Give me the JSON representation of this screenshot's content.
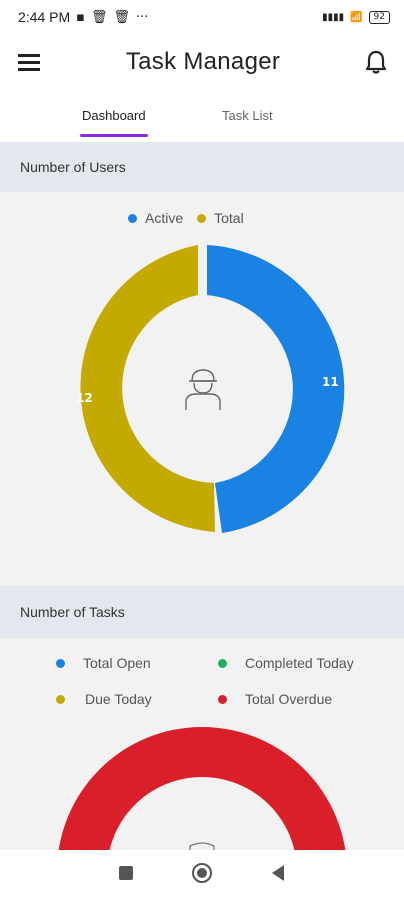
{
  "status": {
    "time": "2:44 PM",
    "battery": "92"
  },
  "app": {
    "title": "Task Manager"
  },
  "tabs": [
    {
      "label": "Dashboard",
      "active": true
    },
    {
      "label": "Task List",
      "active": false
    }
  ],
  "users_section": {
    "title": "Number of Users",
    "legend": [
      {
        "label": "Active",
        "color": "#1a82e2"
      },
      {
        "label": "Total",
        "color": "#c4aa00"
      }
    ],
    "active_value": "11",
    "total_value": "12"
  },
  "tasks_section": {
    "title": "Number of Tasks",
    "legend": [
      {
        "label": "Total Open",
        "color": "#1a82e2"
      },
      {
        "label": "Completed Today",
        "color": "#1fae5b"
      },
      {
        "label": "Due Today",
        "color": "#c4aa00"
      },
      {
        "label": "Total Overdue",
        "color": "#d9202a"
      }
    ]
  },
  "colors": {
    "accent": "#8a2be2",
    "active": "#1a82e2",
    "total": "#c4aa00",
    "overdue": "#d9202a"
  }
}
